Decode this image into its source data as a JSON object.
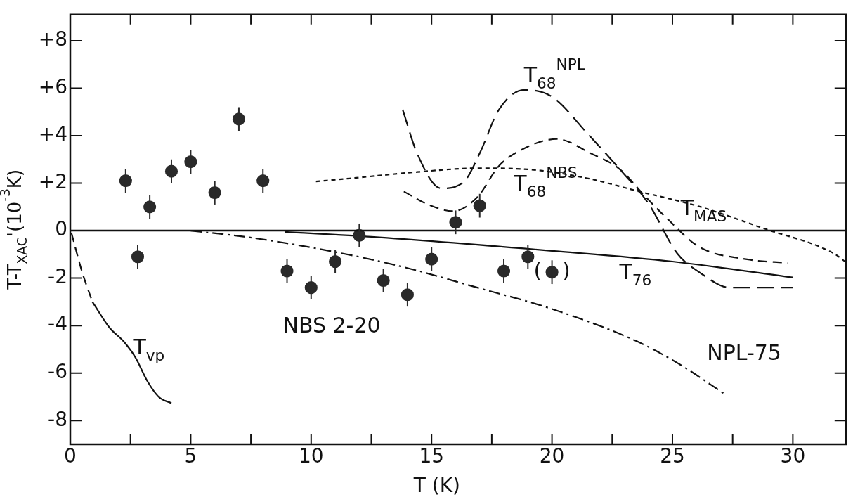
{
  "chart_data": {
    "type": "line",
    "xlabel": "T (K)",
    "ylabel": "T-T$_{XAC}$'(10$^{-3}$K)",
    "xlim": [
      0,
      32.2
    ],
    "ylim": [
      -9,
      9.1
    ],
    "xticks": [
      0,
      {
        "value": 2.5,
        "label": null
      },
      5,
      {
        "value": 7.5,
        "label": null
      },
      10,
      {
        "value": 12.5,
        "label": null
      },
      15,
      {
        "value": 17.5,
        "label": null
      },
      20,
      {
        "value": 22.5,
        "label": null
      },
      25,
      {
        "value": 27.5,
        "label": null
      },
      30
    ],
    "yticks": [
      {
        "value": -8,
        "label": "-8"
      },
      {
        "value": -6,
        "label": "-6"
      },
      {
        "value": -4,
        "label": "-4"
      },
      {
        "value": -2,
        "label": "-2"
      },
      0,
      {
        "value": 2,
        "label": "+2"
      },
      {
        "value": 4,
        "label": "+4"
      },
      {
        "value": 6,
        "label": "+6"
      },
      {
        "value": 8,
        "label": "+8"
      }
    ],
    "grid": false,
    "ref_lines": [
      {
        "axis": "y",
        "value": 0,
        "color": "#111111",
        "line_style": "solid"
      }
    ],
    "annotations": [
      {
        "text": "(   )",
        "x": 20,
        "y": -1.75
      }
    ],
    "series": [
      {
        "type": "scatter",
        "name": "NBS 2-20",
        "color": "#2a2a2a",
        "marker": "circle",
        "x": [
          2.3,
          2.8,
          3.3,
          4.2,
          5.0,
          6.0,
          7.0,
          8.0,
          9.0,
          10.0,
          11.0,
          12.0,
          13.0,
          14.0,
          15.0,
          16.0,
          17.0,
          18.0,
          19.0,
          20.0
        ],
        "values": [
          2.1,
          -1.1,
          1.0,
          2.5,
          2.9,
          1.6,
          4.7,
          2.1,
          -1.7,
          -2.4,
          -1.3,
          -0.2,
          -2.1,
          -2.7,
          -1.2,
          0.35,
          1.05,
          -1.7,
          -1.1,
          -1.75
        ],
        "errors": [
          0.5,
          0.5,
          0.5,
          0.5,
          0.5,
          0.5,
          0.5,
          0.5,
          0.5,
          0.5,
          0.5,
          0.5,
          0.5,
          0.5,
          0.5,
          0.5,
          0.5,
          0.5,
          0.5,
          0.5
        ]
      },
      {
        "type": "line",
        "color": "#111111",
        "line_style": "dashed",
        "marker": "none",
        "x": [
          0.05,
          0.48,
          0.92
        ],
        "values": [
          -0.1,
          -1.7,
          -3.0
        ]
      },
      {
        "type": "line",
        "name": "T$_{vp}$",
        "color": "#111111",
        "line_style": "solid",
        "marker": "none",
        "x": [
          0.92,
          1.64,
          2.22,
          2.71,
          3.19,
          3.67,
          4.2
        ],
        "values": [
          -3.0,
          -4.1,
          -4.67,
          -5.35,
          -6.32,
          -7.0,
          -7.27
        ]
      },
      {
        "type": "line",
        "name": "T$_{76}$",
        "color": "#111111",
        "line_style": "solid",
        "marker": "none",
        "x": [
          8.9,
          12.5,
          20,
          25,
          30
        ],
        "values": [
          -0.05,
          -0.26,
          -0.85,
          -1.3,
          -1.97
        ]
      },
      {
        "type": "line",
        "name": "NPL-75",
        "color": "#111111",
        "line_style": "dashdot",
        "marker": "none",
        "x": [
          5.0,
          7.4,
          11.0,
          13.9,
          16.9,
          20.0,
          23.5,
          25.2,
          27.2
        ],
        "values": [
          0,
          -0.28,
          -0.9,
          -1.55,
          -2.4,
          -3.3,
          -4.65,
          -5.57,
          -6.9
        ]
      },
      {
        "type": "line",
        "name": "T$_{MAS}$",
        "color": "#111111",
        "line_style": "shortdash",
        "marker": "none",
        "x": [
          10.2,
          11.6,
          14.4,
          16.9,
          19.0,
          21.5,
          23.5,
          26.1,
          28.8,
          31.7,
          32.2
        ],
        "values": [
          2.07,
          2.2,
          2.47,
          2.63,
          2.58,
          2.2,
          1.68,
          1.02,
          0.09,
          -0.96,
          -1.33
        ]
      },
      {
        "type": "line",
        "name": "T$_{68}$$^{NPL}$",
        "color": "#111111",
        "line_style": "longdash",
        "marker": "none",
        "x": [
          13.8,
          14.4,
          15.4,
          16.35,
          17.0,
          17.8,
          18.85,
          20.0,
          21.5,
          22.8,
          24.0,
          25.2,
          26.1,
          27.4,
          30.0
        ],
        "values": [
          5.1,
          3.26,
          1.78,
          2.07,
          3.26,
          5.1,
          5.93,
          5.64,
          4.06,
          2.6,
          1.15,
          -0.96,
          -1.74,
          -2.4,
          -2.4
        ]
      },
      {
        "type": "line",
        "name": "T$_{68}$$^{NBS}$",
        "color": "#111111",
        "line_style": "dashed",
        "marker": "none",
        "x": [
          13.85,
          14.9,
          15.9,
          16.9,
          17.8,
          18.7,
          20.2,
          21.6,
          22.8,
          23.9,
          24.8,
          26.1,
          28.1,
          29.8
        ],
        "values": [
          1.65,
          1.08,
          0.82,
          1.41,
          2.73,
          3.39,
          3.86,
          3.26,
          2.6,
          1.41,
          0.49,
          -0.68,
          -1.21,
          -1.36
        ]
      }
    ]
  }
}
